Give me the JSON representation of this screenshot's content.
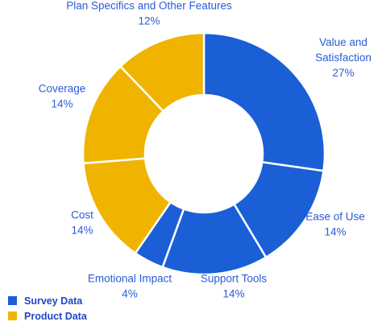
{
  "chart_data": {
    "type": "pie",
    "donut": true,
    "slices": [
      {
        "label_lines": [
          "Value and",
          "Satisfaction"
        ],
        "value": 27,
        "pct_label": "27%",
        "group": "Survey Data"
      },
      {
        "label_lines": [
          "Ease of Use"
        ],
        "value": 14,
        "pct_label": "14%",
        "group": "Survey Data"
      },
      {
        "label_lines": [
          "Support Tools"
        ],
        "value": 14,
        "pct_label": "14%",
        "group": "Survey Data"
      },
      {
        "label_lines": [
          "Emotional Impact"
        ],
        "value": 4,
        "pct_label": "4%",
        "group": "Survey Data"
      },
      {
        "label_lines": [
          "Cost"
        ],
        "value": 14,
        "pct_label": "14%",
        "group": "Product Data"
      },
      {
        "label_lines": [
          "Coverage"
        ],
        "value": 14,
        "pct_label": "14%",
        "group": "Product Data"
      },
      {
        "label_lines": [
          "Plan Specifics and Other Features"
        ],
        "value": 12,
        "pct_label": "12%",
        "group": "Product Data"
      }
    ],
    "legend": {
      "placement": "bottom-left",
      "items": [
        {
          "label": "Survey Data",
          "color": "#1a5fd6"
        },
        {
          "label": "Product Data",
          "color": "#f0b400"
        }
      ]
    }
  }
}
